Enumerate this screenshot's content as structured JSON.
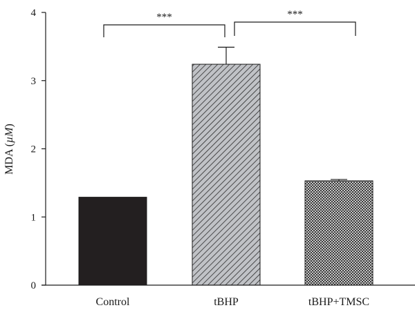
{
  "chart_data": {
    "type": "bar",
    "categories": [
      "Control",
      "tBHP",
      "tBHP+TMSC"
    ],
    "values": [
      1.29,
      3.24,
      1.53
    ],
    "errors": [
      0.0,
      0.25,
      0.02
    ],
    "patterns": [
      "solid-black",
      "diagonal-hatch",
      "crosshatch"
    ],
    "ylabel_prefix": "MDA (",
    "ylabel_unit": "µM",
    "ylabel_suffix": ")",
    "ylim": [
      0,
      4
    ],
    "yticks": [
      "0",
      "1",
      "2",
      "3",
      "4"
    ],
    "significance": [
      {
        "from": "Control",
        "to": "tBHP",
        "label": "***"
      },
      {
        "from": "tBHP",
        "to": "tBHP+TMSC",
        "label": "***"
      }
    ],
    "grid": false,
    "legend": "none"
  },
  "colors": {
    "axis": "#1a1a1a",
    "control_fill": "#231f20",
    "tbhp_fill": "#c0c2c6",
    "tmsc_fill": "#ffffff"
  }
}
